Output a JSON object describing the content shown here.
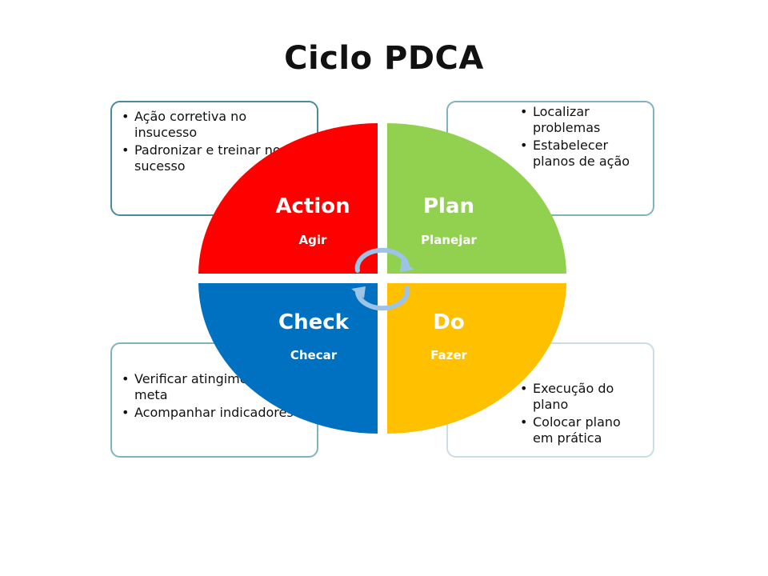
{
  "title": "Ciclo PDCA",
  "colors": {
    "action": "#ff0000",
    "plan": "#92d050",
    "check": "#0070c0",
    "do": "#ffc000",
    "box_border": "#4b8a9c",
    "arrow": "#9dc3e6"
  },
  "quadrants": {
    "action": {
      "label": "Action",
      "sub": "Agir"
    },
    "plan": {
      "label": "Plan",
      "sub": "Planejar"
    },
    "check": {
      "label": "Check",
      "sub": "Checar"
    },
    "do": {
      "label": "Do",
      "sub": "Fazer"
    }
  },
  "boxes": {
    "action": [
      "Ação corretiva no insucesso",
      "Padronizar e treinar no sucesso"
    ],
    "plan": [
      "Localizar problemas",
      "Estabelecer planos de ação"
    ],
    "check": [
      "Verificar atingimento de meta",
      "Acompanhar indicadores"
    ],
    "do": [
      "Execução do plano",
      "Colocar plano em prática"
    ]
  }
}
